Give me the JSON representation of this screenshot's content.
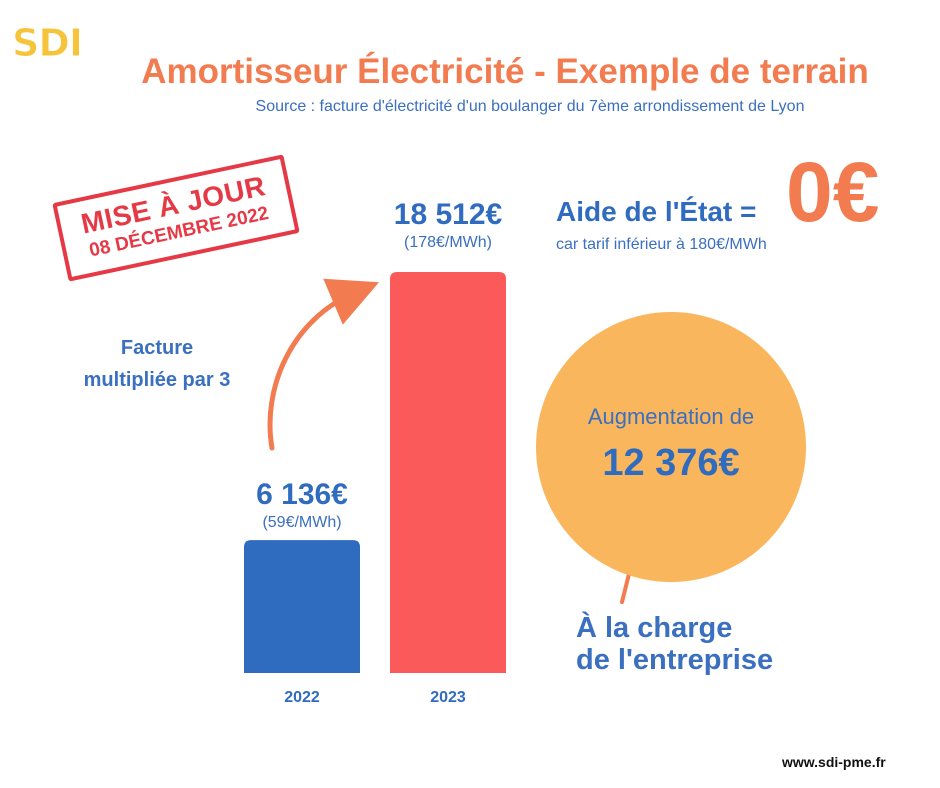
{
  "logo": {
    "text": "SDI",
    "color": "#f6c43a"
  },
  "title": "Amortisseur Électricité - Exemple de terrain",
  "subtitle": "Source : facture d'électricité d'un boulanger du 7ème arrondissement de Lyon",
  "stamp": {
    "line1": "MISE À JOUR",
    "line2": "08 DÉCEMBRE 2022",
    "color": "#e63946"
  },
  "annotation_left": {
    "line1": "Facture",
    "line2": "multipliée par 3"
  },
  "aide": {
    "label": "Aide de l'État =",
    "value": "0€",
    "note": "car tarif inférieur à 180€/MWh"
  },
  "circle": {
    "line1": "Augmentation de",
    "line2": "12 376€",
    "color": "#f9b65c"
  },
  "charge": {
    "line1": "À la charge",
    "line2": "de l'entreprise"
  },
  "url": "www.sdi-pme.fr",
  "colors": {
    "blue": "#2f6bbf",
    "red": "#fb5a5a",
    "orange": "#f27c50"
  },
  "chart_data": {
    "type": "bar",
    "categories": [
      "2022",
      "2023"
    ],
    "values": [
      6136,
      18512
    ],
    "value_labels": [
      "6 136€",
      "18 512€"
    ],
    "sub_labels": [
      "(59€/MWh)",
      "(178€/MWh)"
    ],
    "bar_colors": [
      "#2f6bbf",
      "#fb5a5a"
    ],
    "title": "",
    "xlabel": "",
    "ylabel": "",
    "ylim": [
      0,
      18512
    ],
    "grid": false
  }
}
